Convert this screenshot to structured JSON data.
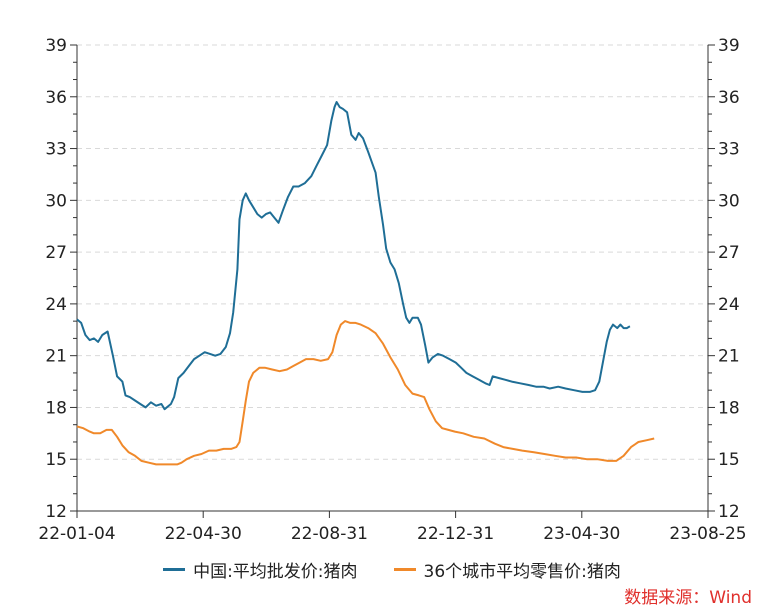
{
  "chart_data": {
    "type": "line",
    "x_start": "2022-01-04",
    "x_end": "2023-08-25",
    "x_ticks": [
      "22-01-04",
      "22-04-30",
      "22-08-31",
      "22-12-31",
      "23-04-30",
      "23-08-25"
    ],
    "y_ticks": [
      12,
      15,
      18,
      21,
      24,
      27,
      30,
      33,
      36,
      39
    ],
    "ylim": [
      12,
      39
    ],
    "grid": true,
    "legend_position": "bottom",
    "series": [
      {
        "name": "中国:平均批发价:猪肉",
        "color": "#1f6e96",
        "points": [
          [
            "2022-01-04",
            23.1
          ],
          [
            "2022-01-08",
            22.9
          ],
          [
            "2022-01-12",
            22.2
          ],
          [
            "2022-01-16",
            21.9
          ],
          [
            "2022-01-20",
            22.0
          ],
          [
            "2022-01-24",
            21.8
          ],
          [
            "2022-01-28",
            22.2
          ],
          [
            "2022-02-02",
            22.4
          ],
          [
            "2022-02-07",
            21.0
          ],
          [
            "2022-02-11",
            19.8
          ],
          [
            "2022-02-16",
            19.5
          ],
          [
            "2022-02-19",
            18.7
          ],
          [
            "2022-02-23",
            18.6
          ],
          [
            "2022-02-28",
            18.4
          ],
          [
            "2022-03-05",
            18.2
          ],
          [
            "2022-03-10",
            18.0
          ],
          [
            "2022-03-15",
            18.3
          ],
          [
            "2022-03-20",
            18.1
          ],
          [
            "2022-03-25",
            18.2
          ],
          [
            "2022-03-28",
            17.9
          ],
          [
            "2022-04-03",
            18.2
          ],
          [
            "2022-04-06",
            18.6
          ],
          [
            "2022-04-10",
            19.7
          ],
          [
            "2022-04-15",
            20.0
          ],
          [
            "2022-04-20",
            20.4
          ],
          [
            "2022-04-25",
            20.8
          ],
          [
            "2022-04-30",
            21.0
          ],
          [
            "2022-05-05",
            21.2
          ],
          [
            "2022-05-10",
            21.1
          ],
          [
            "2022-05-15",
            21.0
          ],
          [
            "2022-05-20",
            21.1
          ],
          [
            "2022-05-25",
            21.5
          ],
          [
            "2022-05-29",
            22.3
          ],
          [
            "2022-06-01",
            23.5
          ],
          [
            "2022-06-05",
            26.0
          ],
          [
            "2022-06-07",
            28.9
          ],
          [
            "2022-06-10",
            30.0
          ],
          [
            "2022-06-13",
            30.4
          ],
          [
            "2022-06-16",
            30.0
          ],
          [
            "2022-06-20",
            29.6
          ],
          [
            "2022-06-24",
            29.2
          ],
          [
            "2022-06-28",
            29.0
          ],
          [
            "2022-07-02",
            29.2
          ],
          [
            "2022-07-06",
            29.3
          ],
          [
            "2022-07-10",
            29.0
          ],
          [
            "2022-07-14",
            28.7
          ],
          [
            "2022-07-18",
            29.4
          ],
          [
            "2022-07-23",
            30.2
          ],
          [
            "2022-07-28",
            30.8
          ],
          [
            "2022-08-02",
            30.8
          ],
          [
            "2022-08-08",
            31.0
          ],
          [
            "2022-08-14",
            31.4
          ],
          [
            "2022-08-19",
            32.0
          ],
          [
            "2022-08-24",
            32.6
          ],
          [
            "2022-08-29",
            33.2
          ],
          [
            "2022-09-02",
            34.6
          ],
          [
            "2022-09-05",
            35.4
          ],
          [
            "2022-09-07",
            35.7
          ],
          [
            "2022-09-10",
            35.4
          ],
          [
            "2022-09-13",
            35.3
          ],
          [
            "2022-09-17",
            35.1
          ],
          [
            "2022-09-21",
            33.8
          ],
          [
            "2022-09-25",
            33.5
          ],
          [
            "2022-09-28",
            33.9
          ],
          [
            "2022-10-02",
            33.6
          ],
          [
            "2022-10-07",
            32.8
          ],
          [
            "2022-10-11",
            32.1
          ],
          [
            "2022-10-14",
            31.6
          ],
          [
            "2022-10-17",
            30.2
          ],
          [
            "2022-10-21",
            28.6
          ],
          [
            "2022-10-24",
            27.2
          ],
          [
            "2022-10-28",
            26.4
          ],
          [
            "2022-11-01",
            26.0
          ],
          [
            "2022-11-05",
            25.2
          ],
          [
            "2022-11-09",
            24.0
          ],
          [
            "2022-11-12",
            23.2
          ],
          [
            "2022-11-15",
            22.9
          ],
          [
            "2022-11-18",
            23.2
          ],
          [
            "2022-11-23",
            23.2
          ],
          [
            "2022-11-26",
            22.8
          ],
          [
            "2022-11-30",
            21.6
          ],
          [
            "2022-12-03",
            20.6
          ],
          [
            "2022-12-07",
            20.9
          ],
          [
            "2022-12-12",
            21.1
          ],
          [
            "2022-12-17",
            21.0
          ],
          [
            "2022-12-23",
            20.8
          ],
          [
            "2022-12-29",
            20.6
          ],
          [
            "2023-01-03",
            20.3
          ],
          [
            "2023-01-08",
            20.0
          ],
          [
            "2023-01-14",
            19.8
          ],
          [
            "2023-01-20",
            19.6
          ],
          [
            "2023-01-26",
            19.4
          ],
          [
            "2023-01-30",
            19.3
          ],
          [
            "2023-02-02",
            19.8
          ],
          [
            "2023-02-08",
            19.7
          ],
          [
            "2023-02-14",
            19.6
          ],
          [
            "2023-02-20",
            19.5
          ],
          [
            "2023-02-28",
            19.4
          ],
          [
            "2023-03-08",
            19.3
          ],
          [
            "2023-03-15",
            19.2
          ],
          [
            "2023-03-22",
            19.2
          ],
          [
            "2023-03-28",
            19.1
          ],
          [
            "2023-04-05",
            19.2
          ],
          [
            "2023-04-12",
            19.1
          ],
          [
            "2023-04-20",
            19.0
          ],
          [
            "2023-04-28",
            18.9
          ],
          [
            "2023-05-05",
            18.9
          ],
          [
            "2023-05-10",
            19.0
          ],
          [
            "2023-05-14",
            19.5
          ],
          [
            "2023-05-18",
            20.8
          ],
          [
            "2023-05-21",
            21.8
          ],
          [
            "2023-05-24",
            22.5
          ],
          [
            "2023-05-27",
            22.8
          ],
          [
            "2023-05-31",
            22.6
          ],
          [
            "2023-06-03",
            22.8
          ],
          [
            "2023-06-06",
            22.6
          ],
          [
            "2023-06-09",
            22.6
          ],
          [
            "2023-06-12",
            22.7
          ]
        ]
      },
      {
        "name": "36个城市平均零售价:猪肉",
        "color": "#f0892a",
        "points": [
          [
            "2022-01-04",
            16.9
          ],
          [
            "2022-01-10",
            16.8
          ],
          [
            "2022-01-16",
            16.6
          ],
          [
            "2022-01-20",
            16.5
          ],
          [
            "2022-01-26",
            16.5
          ],
          [
            "2022-02-01",
            16.7
          ],
          [
            "2022-02-06",
            16.7
          ],
          [
            "2022-02-11",
            16.3
          ],
          [
            "2022-02-16",
            15.8
          ],
          [
            "2022-02-22",
            15.4
          ],
          [
            "2022-02-28",
            15.2
          ],
          [
            "2022-03-06",
            14.9
          ],
          [
            "2022-03-13",
            14.8
          ],
          [
            "2022-03-20",
            14.7
          ],
          [
            "2022-03-27",
            14.7
          ],
          [
            "2022-04-03",
            14.7
          ],
          [
            "2022-04-09",
            14.7
          ],
          [
            "2022-04-13",
            14.8
          ],
          [
            "2022-04-18",
            15.0
          ],
          [
            "2022-04-25",
            15.2
          ],
          [
            "2022-05-02",
            15.3
          ],
          [
            "2022-05-09",
            15.5
          ],
          [
            "2022-05-16",
            15.5
          ],
          [
            "2022-05-23",
            15.6
          ],
          [
            "2022-05-30",
            15.6
          ],
          [
            "2022-06-04",
            15.7
          ],
          [
            "2022-06-07",
            16.0
          ],
          [
            "2022-06-10",
            17.2
          ],
          [
            "2022-06-13",
            18.4
          ],
          [
            "2022-06-16",
            19.5
          ],
          [
            "2022-06-20",
            20.0
          ],
          [
            "2022-06-26",
            20.3
          ],
          [
            "2022-07-01",
            20.3
          ],
          [
            "2022-07-08",
            20.2
          ],
          [
            "2022-07-15",
            20.1
          ],
          [
            "2022-07-22",
            20.2
          ],
          [
            "2022-07-28",
            20.4
          ],
          [
            "2022-08-03",
            20.6
          ],
          [
            "2022-08-09",
            20.8
          ],
          [
            "2022-08-16",
            20.8
          ],
          [
            "2022-08-23",
            20.7
          ],
          [
            "2022-08-30",
            20.8
          ],
          [
            "2022-09-03",
            21.2
          ],
          [
            "2022-09-07",
            22.2
          ],
          [
            "2022-09-11",
            22.8
          ],
          [
            "2022-09-15",
            23.0
          ],
          [
            "2022-09-20",
            22.9
          ],
          [
            "2022-09-25",
            22.9
          ],
          [
            "2022-09-30",
            22.8
          ],
          [
            "2022-10-07",
            22.6
          ],
          [
            "2022-10-14",
            22.3
          ],
          [
            "2022-10-21",
            21.7
          ],
          [
            "2022-10-28",
            20.9
          ],
          [
            "2022-11-04",
            20.2
          ],
          [
            "2022-11-11",
            19.3
          ],
          [
            "2022-11-18",
            18.8
          ],
          [
            "2022-11-24",
            18.7
          ],
          [
            "2022-11-29",
            18.6
          ],
          [
            "2022-12-04",
            17.9
          ],
          [
            "2022-12-10",
            17.2
          ],
          [
            "2022-12-16",
            16.8
          ],
          [
            "2022-12-22",
            16.7
          ],
          [
            "2022-12-28",
            16.6
          ],
          [
            "2023-01-05",
            16.5
          ],
          [
            "2023-01-15",
            16.3
          ],
          [
            "2023-01-25",
            16.2
          ],
          [
            "2023-02-04",
            15.9
          ],
          [
            "2023-02-12",
            15.7
          ],
          [
            "2023-02-21",
            15.6
          ],
          [
            "2023-03-02",
            15.5
          ],
          [
            "2023-03-13",
            15.4
          ],
          [
            "2023-03-23",
            15.3
          ],
          [
            "2023-04-02",
            15.2
          ],
          [
            "2023-04-12",
            15.1
          ],
          [
            "2023-04-22",
            15.1
          ],
          [
            "2023-05-02",
            15.0
          ],
          [
            "2023-05-12",
            15.0
          ],
          [
            "2023-05-22",
            14.9
          ],
          [
            "2023-05-30",
            14.9
          ],
          [
            "2023-06-06",
            15.2
          ],
          [
            "2023-06-13",
            15.7
          ],
          [
            "2023-06-20",
            16.0
          ],
          [
            "2023-06-28",
            16.1
          ],
          [
            "2023-07-05",
            16.2
          ]
        ]
      }
    ]
  },
  "source": "数据来源：Wind"
}
